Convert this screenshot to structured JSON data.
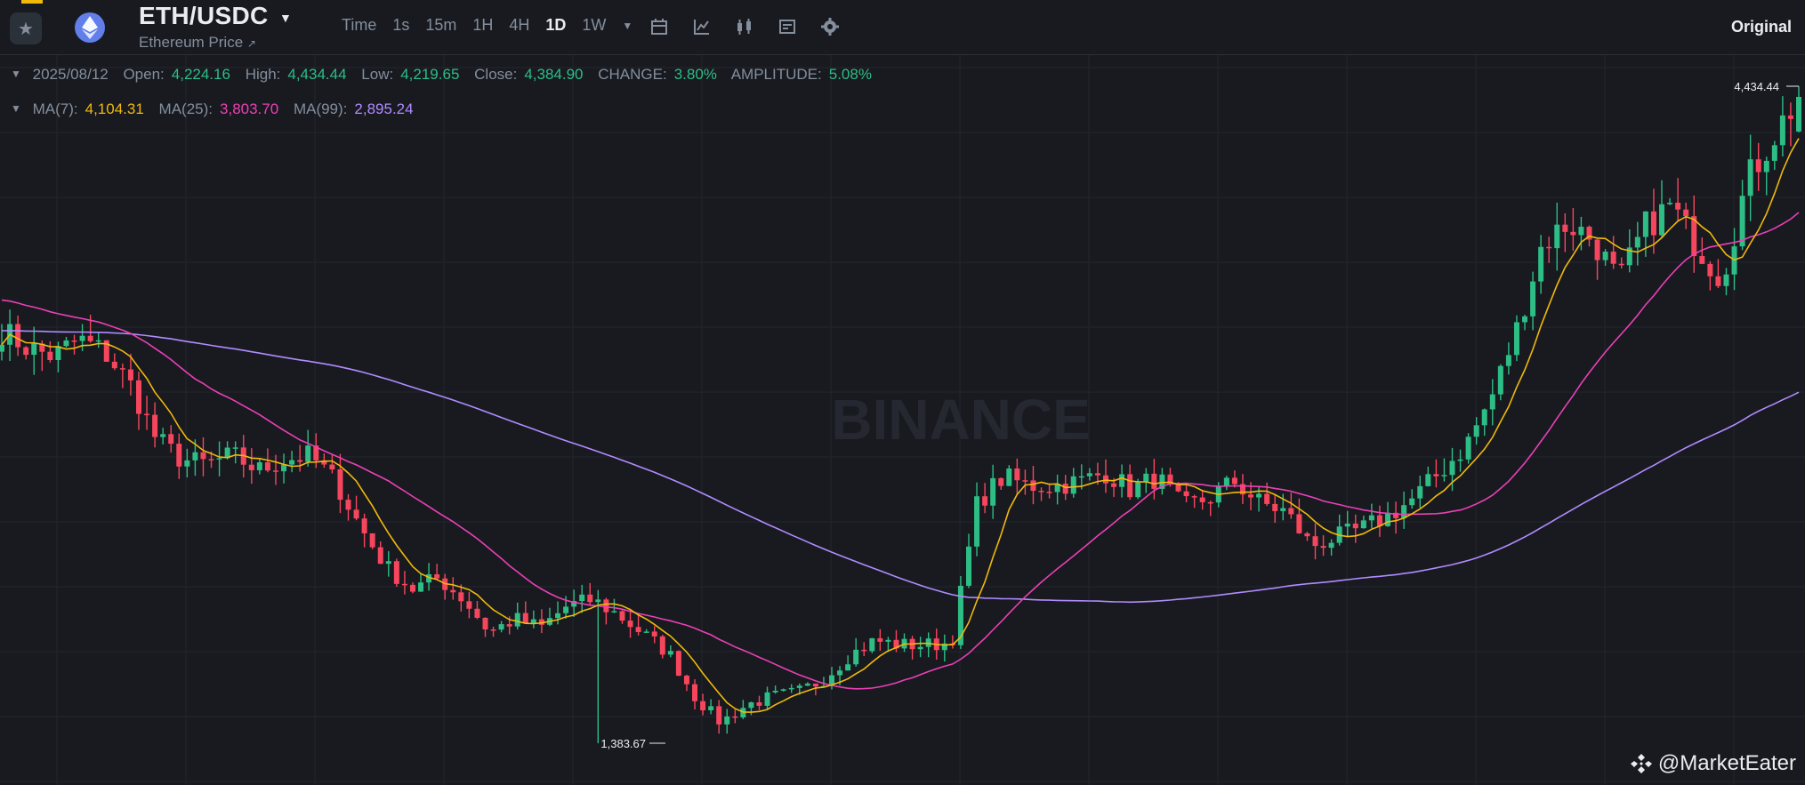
{
  "header": {
    "pair": "ETH/USDC",
    "subtitle": "Ethereum Price",
    "subtitle_arrow": "↗",
    "intervals": [
      "Time",
      "1s",
      "15m",
      "1H",
      "4H",
      "1D",
      "1W"
    ],
    "active_interval": "1D",
    "view_mode": "Original",
    "icons": [
      "star-icon",
      "eth-logo-icon",
      "caret-down-icon",
      "calendar-icon",
      "indicator-icon",
      "candle-type-icon",
      "layout-settings-icon",
      "gear-icon"
    ]
  },
  "ohlc": {
    "date": "2025/08/12",
    "open_label": "Open:",
    "open": "4,224.16",
    "high_label": "High:",
    "high": "4,434.44",
    "low_label": "Low:",
    "low": "4,219.65",
    "close_label": "Close:",
    "close": "4,384.90",
    "change_label": "CHANGE:",
    "change": "3.80%",
    "amplitude_label": "AMPLITUDE:",
    "amplitude": "5.08%"
  },
  "ma": {
    "ma7_label": "MA(7):",
    "ma7": "4,104.31",
    "ma25_label": "MA(25):",
    "ma25": "3,803.70",
    "ma99_label": "MA(99):",
    "ma99": "2,895.24"
  },
  "markers": {
    "high_marker": "4,434.44",
    "low_marker": "1,383.67"
  },
  "watermark": "BINANCE",
  "credit": "@MarketEater",
  "colors": {
    "up": "#2ebd85",
    "down": "#f6465d",
    "ma7": "#f0b90b",
    "ma25": "#eb40b5",
    "ma99": "#b18bff",
    "background": "#181a20"
  },
  "chart_data": {
    "type": "candlestick",
    "x_range": [
      "2025/01",
      "2025/08/12"
    ],
    "y_range": [
      1383.67,
      4434.44
    ],
    "grid": true,
    "close_series_approx": [
      3300,
      3220,
      3180,
      3260,
      3200,
      3050,
      2800,
      2700,
      2680,
      2720,
      2650,
      2700,
      2720,
      2600,
      2380,
      2200,
      2100,
      2150,
      2050,
      1900,
      1960,
      1920,
      2020,
      2050,
      1980,
      1890,
      1800,
      1600,
      1480,
      1560,
      1600,
      1620,
      1680,
      1790,
      1860,
      1840,
      1840,
      1850,
      2500,
      2620,
      2580,
      2580,
      2600,
      2640,
      2560,
      2620,
      2480,
      2520,
      2600,
      2500,
      2460,
      2300,
      2340,
      2380,
      2440,
      2520,
      2640,
      2760,
      2980,
      3300,
      3700,
      3800,
      3720,
      3520,
      3780,
      3880,
      3700,
      3540,
      4000,
      4200,
      4384.9
    ]
  }
}
